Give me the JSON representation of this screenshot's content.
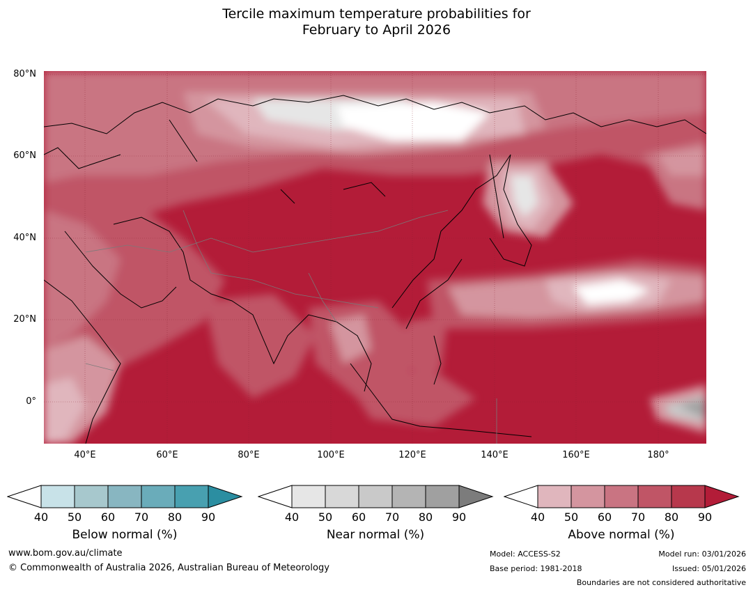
{
  "title": {
    "line1": "Tercile maximum temperature probabilities for",
    "line2": "February to April 2026"
  },
  "map": {
    "lat_labels": [
      "80°N",
      "60°N",
      "40°N",
      "20°N",
      "0°"
    ],
    "lon_labels": [
      "40°E",
      "60°E",
      "80°E",
      "100°E",
      "120°E",
      "140°E",
      "160°E",
      "180°"
    ]
  },
  "colorbars": [
    {
      "name": "below",
      "label": "Below normal (%)",
      "ticks": [
        "40",
        "50",
        "60",
        "70",
        "80",
        "90"
      ],
      "colors": [
        "#ffffff",
        "#c8e2e8",
        "#a7c8cd",
        "#88b6c1",
        "#6aacba",
        "#48a0b0",
        "#2b8ea1"
      ]
    },
    {
      "name": "near",
      "label": "Near normal (%)",
      "ticks": [
        "40",
        "50",
        "60",
        "70",
        "80",
        "90"
      ],
      "colors": [
        "#ffffff",
        "#e6e6e6",
        "#d8d8d8",
        "#c9c9c9",
        "#b4b4b4",
        "#a0a0a0",
        "#7c7c7c"
      ]
    },
    {
      "name": "above",
      "label": "Above normal (%)",
      "ticks": [
        "40",
        "50",
        "60",
        "70",
        "80",
        "90"
      ],
      "colors": [
        "#ffffff",
        "#e0b6bd",
        "#d4959f",
        "#c97482",
        "#c05566",
        "#b7384c",
        "#b31c38"
      ]
    }
  ],
  "footer": {
    "website": "www.bom.gov.au/climate",
    "copyright": "© Commonwealth of Australia 2026, Australian Bureau of Meteorology",
    "model": "Model: ACCESS-S2",
    "base_period": "Base period: 1981-2018",
    "model_run": "Model run: 03/01/2026",
    "issued": "Issued: 05/01/2026",
    "disclaimer": "Boundaries are not considered authoritative"
  }
}
